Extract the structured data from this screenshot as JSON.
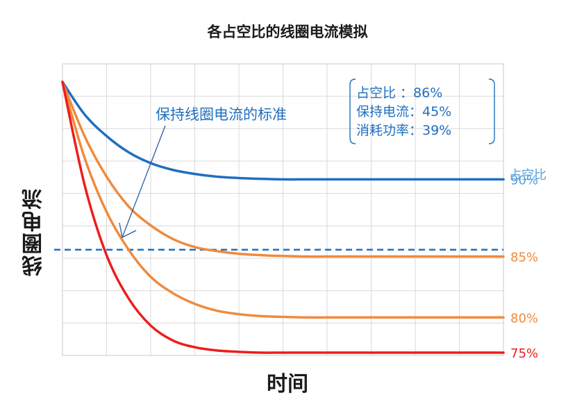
{
  "chart_data": {
    "type": "line",
    "title": "各占空比的线圈电流模拟",
    "xlabel": "时间",
    "ylabel": "线圈电流",
    "grid": true,
    "x": [
      0,
      0.05,
      0.1,
      0.15,
      0.2,
      0.25,
      0.3,
      0.35,
      0.4,
      0.45,
      0.5,
      0.55,
      0.6,
      0.65,
      0.7,
      0.75,
      0.8,
      0.85,
      0.9,
      0.95,
      1.0
    ],
    "series": [
      {
        "label": "90%",
        "color": "#1f6fc0",
        "values": [
          100,
          88,
          80,
          74,
          70,
          67.5,
          66,
          65,
          64.5,
          64.2,
          64,
          64,
          64,
          64,
          64,
          64,
          64,
          64,
          64,
          64,
          64
        ]
      },
      {
        "label": "85%",
        "color": "#f08a3c",
        "values": [
          100,
          80,
          65,
          54,
          47,
          42,
          39,
          37.5,
          36.5,
          36,
          35.7,
          35.5,
          35.5,
          35.5,
          35.5,
          35.5,
          35.5,
          35.5,
          35.5,
          35.5,
          35.5
        ]
      },
      {
        "label": "80%",
        "color": "#f08a3c",
        "values": [
          100,
          72,
          52,
          38,
          28,
          22,
          18,
          15.5,
          14.2,
          13.5,
          13.2,
          13,
          13,
          13,
          13,
          13,
          13,
          13,
          13,
          13,
          13
        ]
      },
      {
        "label": "75%",
        "color": "#ee1c1c",
        "values": [
          100,
          62,
          36,
          20,
          10,
          4.5,
          2,
          0.8,
          0.3,
          0,
          0,
          0,
          0,
          0,
          0,
          0,
          0,
          0,
          0,
          0,
          0
        ]
      }
    ],
    "threshold": {
      "value": 38,
      "color": "#1f6fc0",
      "style": "dashed"
    },
    "series_header": "占空比",
    "annotation_text": "保持线圈电流的标准",
    "info_box": [
      "占空比 ：86%",
      "保持电流：45%",
      "消耗功率：39%"
    ]
  }
}
